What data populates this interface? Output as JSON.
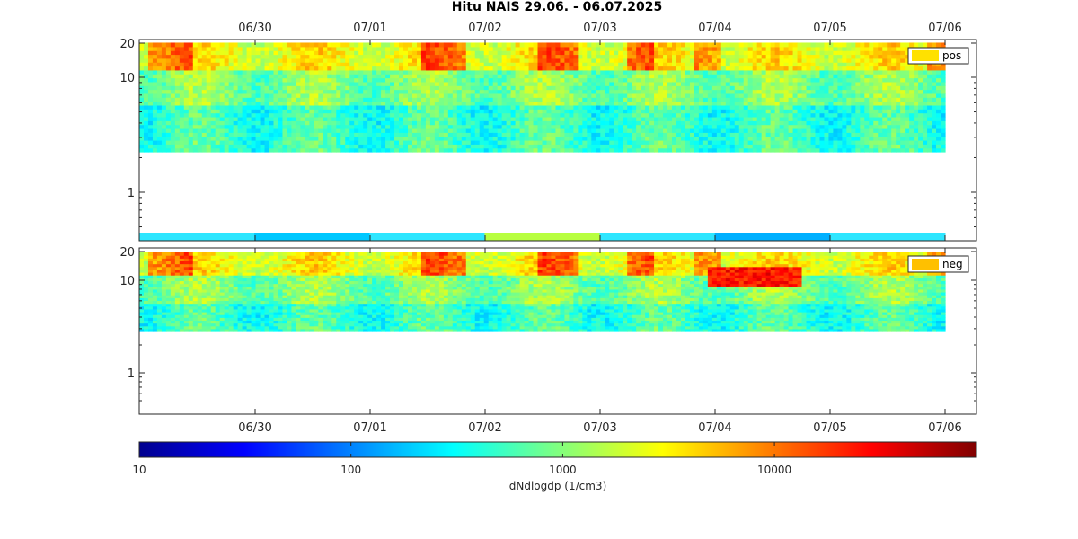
{
  "chart_data": {
    "type": "heatmap",
    "title": "Hitu NAIS  29.06.  -  06.07.2025",
    "time_ticks": [
      "06/30",
      "07/01",
      "07/02",
      "07/03",
      "07/04",
      "07/05",
      "07/06"
    ],
    "panels": [
      {
        "legend": "pos",
        "legend_color": "#ffe100",
        "y_axis": {
          "scale": "log",
          "range_nm": [
            0.4,
            20
          ],
          "tick_values": [
            1,
            10,
            20
          ],
          "tick_labels": [
            "1",
            "10",
            "20"
          ]
        },
        "strip_colors": [
          "#2ee6ff",
          "#00c8ff",
          "#2ee6ff",
          "#b8ff40",
          "#2ee6ff",
          "#00b0ff",
          "#2ee6ff"
        ]
      },
      {
        "legend": "neg",
        "legend_color": "#ffc000",
        "y_axis": {
          "scale": "log",
          "range_nm": [
            0.4,
            20
          ],
          "tick_values": [
            1,
            10,
            20
          ],
          "tick_labels": [
            "1",
            "10",
            "20"
          ]
        }
      }
    ],
    "colorbar": {
      "scale": "log",
      "range": [
        10,
        90000
      ],
      "tick_values": [
        10,
        100,
        1000,
        10000
      ],
      "tick_labels": [
        "10",
        "100",
        "1000",
        "10000"
      ],
      "label": "dNdlogdp (1/cm3)",
      "colormap": "jet"
    }
  }
}
